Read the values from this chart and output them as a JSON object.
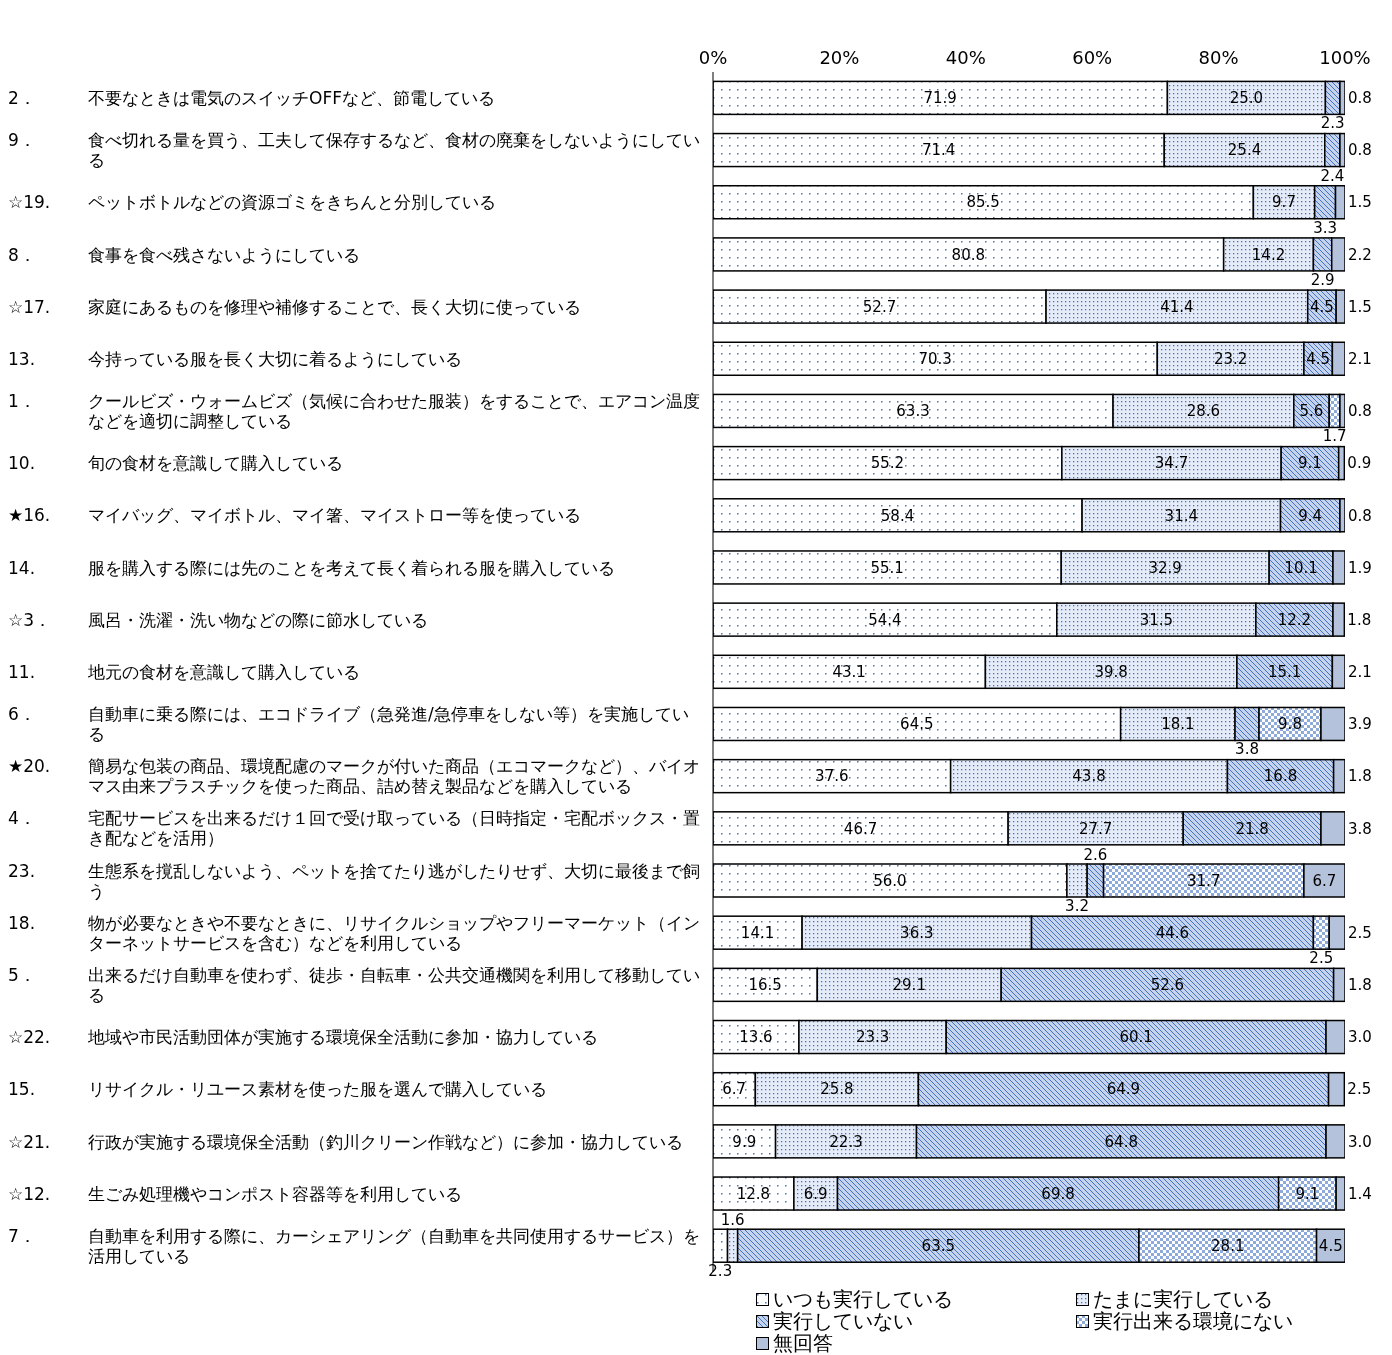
{
  "chart_data": {
    "type": "bar",
    "orientation": "horizontal",
    "stacked": true,
    "legend": "bottom",
    "xlim": [
      0,
      100
    ],
    "xticks": [
      {
        "value": 0,
        "label": "0%"
      },
      {
        "value": 20,
        "label": "20%"
      },
      {
        "value": 40,
        "label": "40%"
      },
      {
        "value": 60,
        "label": "60%"
      },
      {
        "value": 80,
        "label": "80%"
      },
      {
        "value": 100,
        "label": "100%"
      }
    ],
    "categories": [
      "2．不要なときは電気のスイッチOFFなど、節電している",
      "9．食べ切れる量を買う、工夫して保存するなど、食材の廃棄をしないようにしている",
      "☆19. ペットボトルなどの資源ゴミをきちんと分別している",
      "8．食事を食べ残さないようにしている",
      "☆17. 家庭にあるものを修理や補修することで、長く大切に使っている",
      "13. 今持っている服を長く大切に着るようにしている",
      "1．クールビズ・ウォームビズ（気候に合わせた服装）をすることで、エアコン温度などを適切に調整している",
      "10. 旬の食材を意識して購入している",
      "★16. マイバッグ、マイボトル、マイ箸、マイストロー等を使っている",
      "14. 服を購入する際には先のことを考えて長く着られる服を購入している",
      "☆3．風呂・洗濯・洗い物などの際に節水している",
      "11. 地元の食材を意識して購入している",
      "6．自動車に乗る際には、エコドライブ（急発進/急停車をしない等）を実施している",
      "★20. 簡易な包装の商品、環境配慮のマークが付いた商品（エコマークなど）、バイオマス由来プラスチックを使った商品、詰め替え製品などを購入している",
      "4．宅配サービスを出来るだけ１回で受け取っている（日時指定・宅配ボックス・置き配などを活用）",
      "23. 生態系を撹乱しないよう、ペットを捨てたり逃がしたりせず、大切に最後まで飼う",
      "18. 物が必要なときや不要なときに、リサイクルショップやフリーマーケット（インターネットサービスを含む）などを利用している",
      "5．出来るだけ自動車を使わず、徒歩・自転車・公共交通機関を利用して移動している",
      "☆22. 地域や市民活動団体が実施する環境保全活動に参加・協力している",
      "15. リサイクル・リユース素材を使った服を選んで購入している",
      "☆21. 行政が実施する環境保全活動（釣川クリーン作戦など）に参加・協力している",
      "☆12. 生ごみ処理機やコンポスト容器等を利用している",
      "7．自動車を利用する際に、カーシェアリング（自動車を共同使用するサービス）を活用している"
    ],
    "series": [
      {
        "name": "いつも実行している",
        "color": "#ffffff",
        "values": [
          71.9,
          71.4,
          85.5,
          80.8,
          52.7,
          70.3,
          63.3,
          55.2,
          58.4,
          55.1,
          54.4,
          43.1,
          64.5,
          37.6,
          46.7,
          56.0,
          14.1,
          16.5,
          13.6,
          6.7,
          9.9,
          12.8,
          2.3
        ],
        "value_labels": [
          "71.9",
          "71.4",
          "85.5",
          "80.8",
          "52.7",
          "70.3",
          "63.3",
          "55.2",
          "58.4",
          "55.1",
          "54.4",
          "43.1",
          "64.5",
          "37.6",
          "46.7",
          "56.0",
          "14.1",
          "16.5",
          "13.6",
          "6.7",
          "9.9",
          "12.8",
          "2.3"
        ]
      },
      {
        "name": "たまに実行している",
        "color": "#e6ecf7",
        "values": [
          25.0,
          25.4,
          9.7,
          14.2,
          41.4,
          23.2,
          28.6,
          34.7,
          31.4,
          32.9,
          31.5,
          39.8,
          18.1,
          43.8,
          27.7,
          3.2,
          36.3,
          29.1,
          23.3,
          25.8,
          22.3,
          6.9,
          1.6
        ],
        "value_labels": [
          "25.0",
          "25.4",
          "9.7",
          "14.2",
          "41.4",
          "23.2",
          "28.6",
          "34.7",
          "31.4",
          "32.9",
          "31.5",
          "39.8",
          "18.1",
          "43.8",
          "27.7",
          "3.2",
          "36.3",
          "29.1",
          "23.3",
          "25.8",
          "22.3",
          "6.9",
          "1.6"
        ]
      },
      {
        "name": "実行していない",
        "color": "#c5d3ec",
        "values": [
          2.3,
          2.4,
          3.3,
          2.9,
          4.5,
          4.5,
          5.6,
          9.1,
          9.4,
          10.1,
          12.2,
          15.1,
          3.8,
          16.8,
          21.8,
          2.6,
          44.6,
          52.6,
          60.1,
          64.9,
          64.8,
          69.8,
          63.5
        ],
        "value_labels": [
          "2.3",
          "2.4",
          "3.3",
          "2.9",
          "4.5",
          "4.5",
          "5.6",
          "9.1",
          "9.4",
          "10.1",
          "12.2",
          "15.1",
          "3.8",
          "16.8",
          "21.8",
          "2.6",
          "44.6",
          "52.6",
          "60.1",
          "64.9",
          "64.8",
          "69.8",
          "63.5"
        ]
      },
      {
        "name": "実行出来る環境にない",
        "color": "#8eaadb",
        "values": [
          null,
          null,
          null,
          null,
          null,
          null,
          1.7,
          null,
          null,
          null,
          null,
          null,
          9.8,
          null,
          null,
          31.7,
          2.5,
          null,
          null,
          null,
          null,
          9.1,
          28.1
        ],
        "value_labels": [
          null,
          null,
          null,
          null,
          null,
          null,
          "1.7",
          null,
          null,
          null,
          null,
          null,
          "9.8",
          null,
          null,
          "31.7",
          "2.5",
          null,
          null,
          null,
          null,
          "9.1",
          "28.1"
        ]
      },
      {
        "name": "無回答",
        "color": "#b4c2dc",
        "values": [
          0.8,
          0.8,
          1.5,
          2.2,
          1.5,
          2.1,
          0.8,
          0.9,
          0.8,
          1.9,
          1.8,
          2.1,
          3.9,
          1.8,
          3.8,
          6.7,
          2.5,
          1.8,
          3.0,
          2.5,
          3.0,
          1.4,
          4.5
        ],
        "value_labels": [
          "0.8",
          "0.8",
          "1.5",
          "2.2",
          "1.5",
          "2.1",
          "0.8",
          "0.9",
          "0.8",
          "1.9",
          "1.8",
          "2.1",
          "3.9",
          "1.8",
          "3.8",
          "6.7",
          "2.5",
          "1.8",
          "3.0",
          "2.5",
          "3.0",
          "1.4",
          "4.5"
        ]
      }
    ]
  }
}
